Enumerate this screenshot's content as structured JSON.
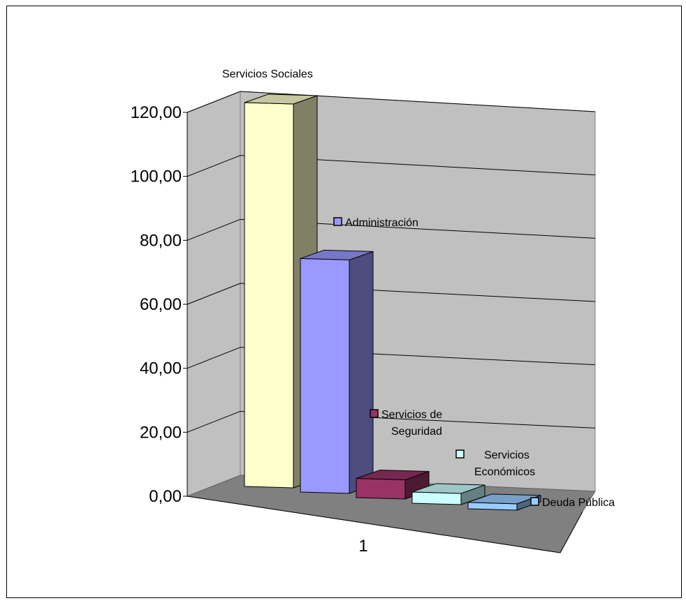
{
  "chart_data": {
    "type": "bar",
    "categories": [
      "1"
    ],
    "series": [
      {
        "name": "Servicios Sociales",
        "values": [
          120
        ],
        "color": "#FFFFCC"
      },
      {
        "name": "Administración",
        "values": [
          73
        ],
        "color": "#9999FF"
      },
      {
        "name": "Servicios de Seguridad",
        "values": [
          6
        ],
        "color": "#993366"
      },
      {
        "name": "Servicios Económicos",
        "values": [
          3.5
        ],
        "color": "#CCFFFF"
      },
      {
        "name": "Deuda Pública",
        "values": [
          2
        ],
        "color": "#99CCFF"
      }
    ],
    "ylim": [
      0,
      120
    ],
    "yticks": [
      "0,00",
      "20,00",
      "40,00",
      "60,00",
      "80,00",
      "100,00",
      "120,00"
    ],
    "grid": true,
    "style": "3d-column"
  }
}
